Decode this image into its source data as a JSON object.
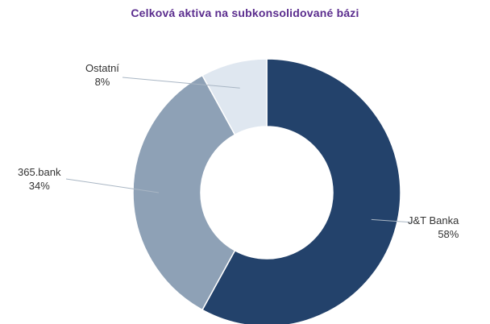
{
  "chart_data": {
    "type": "pie",
    "title": "Celková aktiva na subkonsolidované bázi",
    "donut": true,
    "slices": [
      {
        "label": "J&T Banka",
        "pct_label": "58%",
        "value": 58,
        "color": "#23426b"
      },
      {
        "label": "365.bank",
        "pct_label": "34%",
        "value": 34,
        "color": "#8ea1b6"
      },
      {
        "label": "Ostatní",
        "pct_label": "8%",
        "value": 8,
        "color": "#dfe7f0"
      }
    ]
  }
}
